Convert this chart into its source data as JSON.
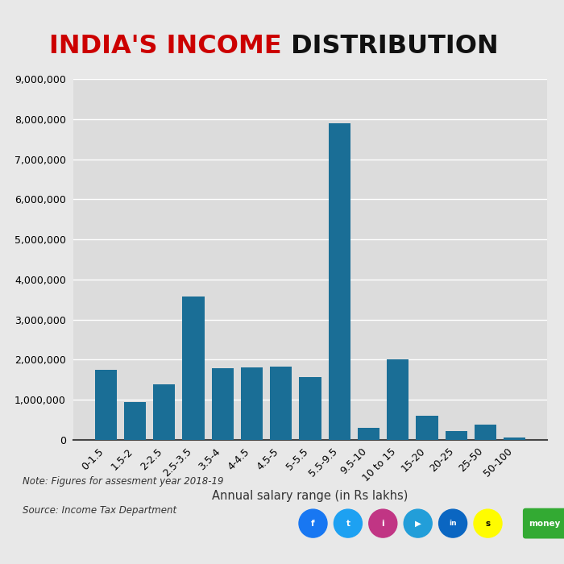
{
  "title_red": "INDIA'S INCOME",
  "title_black": " DISTRIBUTION",
  "categories": [
    "0-1.5",
    "1.5-2",
    "2-2.5",
    "2.5-3.5",
    "3.5-4",
    "4-4.5",
    "4.5-5",
    "5-5.5",
    "5.5-9.5",
    "9.5-10",
    "10 to 15",
    "15-20",
    "20-25",
    "25-50",
    "50-100"
  ],
  "values": [
    1750000,
    950000,
    1380000,
    3580000,
    1780000,
    1800000,
    1820000,
    1570000,
    7900000,
    300000,
    2000000,
    600000,
    230000,
    380000,
    70000
  ],
  "bar_color": "#1a6e96",
  "xlabel": "Annual salary range (in Rs lakhs)",
  "ylim": [
    0,
    9000000
  ],
  "yticks": [
    0,
    1000000,
    2000000,
    3000000,
    4000000,
    5000000,
    6000000,
    7000000,
    8000000,
    9000000
  ],
  "note": "Note: Figures for assesment year 2018-19",
  "source": "Source: Income Tax Department",
  "bg_color": "#e8e8e8",
  "plot_bg_color": "#dcdcdc",
  "grid_color": "#ffffff",
  "bar_width": 0.75,
  "title_fontsize": 23
}
